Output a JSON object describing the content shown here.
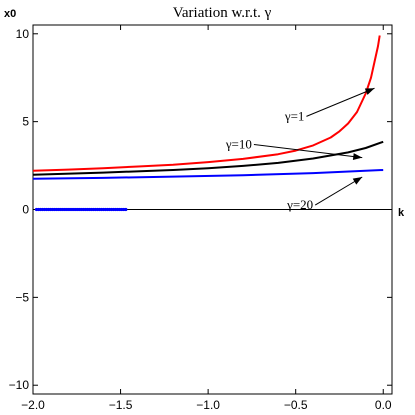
{
  "chart_data": {
    "type": "line",
    "title": "Variation w.r.t. γ",
    "xlabel": "k",
    "ylabel": "x0",
    "xlim": [
      -2.0,
      0.05
    ],
    "ylim": [
      -10.5,
      10.5
    ],
    "x_ticks": [
      -2.0,
      -1.5,
      -1.0,
      -0.5,
      0.0
    ],
    "x_tick_labels": [
      "−2.0",
      "−1.5",
      "−1.0",
      "−0.5",
      "0.0"
    ],
    "y_ticks": [
      -10,
      -5,
      0,
      5,
      10
    ],
    "y_tick_labels": [
      "−10",
      "−5",
      "0",
      "5",
      "10"
    ],
    "grid": false,
    "series": [
      {
        "name": "γ=1",
        "color": "#ff0000",
        "x": [
          -2.0,
          -1.8,
          -1.6,
          -1.4,
          -1.2,
          -1.0,
          -0.8,
          -0.6,
          -0.5,
          -0.4,
          -0.3,
          -0.25,
          -0.2,
          -0.15,
          -0.1,
          -0.07,
          -0.05,
          -0.03,
          -0.02
        ],
        "values": [
          2.2,
          2.27,
          2.35,
          2.45,
          2.55,
          2.7,
          2.88,
          3.15,
          3.35,
          3.65,
          4.1,
          4.45,
          4.9,
          5.55,
          6.6,
          7.5,
          8.4,
          9.3,
          9.9
        ]
      },
      {
        "name": "γ=10",
        "color": "#000000",
        "x": [
          -2.0,
          -1.6,
          -1.2,
          -1.0,
          -0.8,
          -0.6,
          -0.4,
          -0.2,
          -0.1,
          0.0
        ],
        "values": [
          1.98,
          2.1,
          2.25,
          2.35,
          2.48,
          2.65,
          2.9,
          3.25,
          3.5,
          3.85
        ]
      },
      {
        "name": "γ=20",
        "color": "#0000ff",
        "x": [
          -2.0,
          -1.6,
          -1.2,
          -0.8,
          -0.4,
          0.0
        ],
        "values": [
          1.75,
          1.8,
          1.87,
          1.95,
          2.07,
          2.25
        ]
      }
    ],
    "markers": {
      "color": "#0000ff",
      "y": 0,
      "x_start": -1.98,
      "x_end": -1.47,
      "count": 45
    },
    "annotations": [
      {
        "text": "γ=1",
        "series": 0,
        "text_at": [
          -0.45,
          5.3
        ],
        "arrow_to": [
          -0.05,
          6.9
        ]
      },
      {
        "text": "γ=10",
        "series": 1,
        "text_at": [
          -0.75,
          3.7
        ],
        "arrow_to": [
          -0.12,
          2.95
        ]
      },
      {
        "text": "γ=20",
        "series": 2,
        "text_at": [
          -0.4,
          0.25
        ],
        "arrow_to": [
          -0.12,
          1.85
        ]
      }
    ]
  }
}
